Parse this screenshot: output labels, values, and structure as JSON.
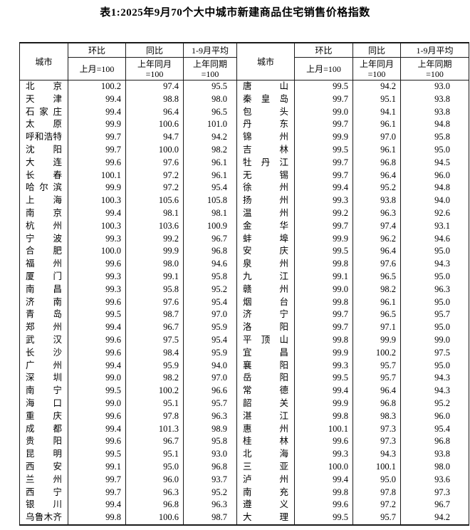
{
  "title": "表1:2025年9月70个大中城市新建商品住宅销售价格指数",
  "header": {
    "city_label": "城市",
    "columns": [
      {
        "top": "环比",
        "b1": "上月=100",
        "b2": ""
      },
      {
        "top": "同比",
        "b1": "上年同月",
        "b2": "=100"
      },
      {
        "top": "1-9月平均",
        "b1": "上年同期",
        "b2": "=100"
      }
    ]
  },
  "left_rows": [
    {
      "city": "北京",
      "mom": "100.2",
      "yoy": "97.4",
      "avg": "95.5"
    },
    {
      "city": "天津",
      "mom": "99.4",
      "yoy": "98.8",
      "avg": "98.0"
    },
    {
      "city": "石家庄",
      "mom": "99.4",
      "yoy": "96.4",
      "avg": "96.5"
    },
    {
      "city": "太原",
      "mom": "99.9",
      "yoy": "100.6",
      "avg": "101.0"
    },
    {
      "city": "呼和浩特",
      "mom": "99.7",
      "yoy": "94.7",
      "avg": "94.2"
    },
    {
      "city": "沈阳",
      "mom": "99.7",
      "yoy": "100.0",
      "avg": "98.2"
    },
    {
      "city": "大连",
      "mom": "99.6",
      "yoy": "97.6",
      "avg": "96.1"
    },
    {
      "city": "长春",
      "mom": "100.1",
      "yoy": "97.2",
      "avg": "96.1"
    },
    {
      "city": "哈尔滨",
      "mom": "99.9",
      "yoy": "97.2",
      "avg": "95.4"
    },
    {
      "city": "上海",
      "mom": "100.3",
      "yoy": "105.6",
      "avg": "105.8"
    },
    {
      "city": "南京",
      "mom": "99.4",
      "yoy": "98.1",
      "avg": "98.1"
    },
    {
      "city": "杭州",
      "mom": "100.3",
      "yoy": "103.6",
      "avg": "100.9"
    },
    {
      "city": "宁波",
      "mom": "99.3",
      "yoy": "99.2",
      "avg": "96.7"
    },
    {
      "city": "合肥",
      "mom": "100.0",
      "yoy": "99.9",
      "avg": "96.8"
    },
    {
      "city": "福州",
      "mom": "99.6",
      "yoy": "98.0",
      "avg": "94.6"
    },
    {
      "city": "厦门",
      "mom": "99.3",
      "yoy": "99.1",
      "avg": "95.8"
    },
    {
      "city": "南昌",
      "mom": "99.3",
      "yoy": "95.8",
      "avg": "95.2"
    },
    {
      "city": "济南",
      "mom": "99.6",
      "yoy": "97.6",
      "avg": "95.4"
    },
    {
      "city": "青岛",
      "mom": "99.5",
      "yoy": "98.7",
      "avg": "97.0"
    },
    {
      "city": "郑州",
      "mom": "99.4",
      "yoy": "96.7",
      "avg": "95.9"
    },
    {
      "city": "武汉",
      "mom": "99.6",
      "yoy": "97.5",
      "avg": "95.4"
    },
    {
      "city": "长沙",
      "mom": "99.6",
      "yoy": "98.4",
      "avg": "95.9"
    },
    {
      "city": "广州",
      "mom": "99.4",
      "yoy": "95.9",
      "avg": "94.0"
    },
    {
      "city": "深圳",
      "mom": "99.0",
      "yoy": "98.2",
      "avg": "97.0"
    },
    {
      "city": "南宁",
      "mom": "99.5",
      "yoy": "100.2",
      "avg": "96.6"
    },
    {
      "city": "海口",
      "mom": "99.0",
      "yoy": "95.1",
      "avg": "95.7"
    },
    {
      "city": "重庆",
      "mom": "99.6",
      "yoy": "97.8",
      "avg": "96.3"
    },
    {
      "city": "成都",
      "mom": "99.4",
      "yoy": "101.3",
      "avg": "98.9"
    },
    {
      "city": "贵阳",
      "mom": "99.6",
      "yoy": "96.7",
      "avg": "95.8"
    },
    {
      "city": "昆明",
      "mom": "99.5",
      "yoy": "95.1",
      "avg": "93.0"
    },
    {
      "city": "西安",
      "mom": "99.1",
      "yoy": "95.0",
      "avg": "96.8"
    },
    {
      "city": "兰州",
      "mom": "99.7",
      "yoy": "96.0",
      "avg": "93.7"
    },
    {
      "city": "西宁",
      "mom": "99.7",
      "yoy": "96.3",
      "avg": "95.2"
    },
    {
      "city": "银川",
      "mom": "99.4",
      "yoy": "96.8",
      "avg": "96.3"
    },
    {
      "city": "乌鲁木齐",
      "mom": "99.8",
      "yoy": "100.6",
      "avg": "98.7"
    }
  ],
  "right_rows": [
    {
      "city": "唐山",
      "mom": "99.5",
      "yoy": "94.2",
      "avg": "93.0"
    },
    {
      "city": "秦皇岛",
      "mom": "99.7",
      "yoy": "95.1",
      "avg": "93.8"
    },
    {
      "city": "包头",
      "mom": "99.0",
      "yoy": "94.1",
      "avg": "93.8"
    },
    {
      "city": "丹东",
      "mom": "99.7",
      "yoy": "96.1",
      "avg": "94.8"
    },
    {
      "city": "锦州",
      "mom": "99.9",
      "yoy": "97.0",
      "avg": "95.8"
    },
    {
      "city": "吉林",
      "mom": "99.5",
      "yoy": "96.1",
      "avg": "95.0"
    },
    {
      "city": "牡丹江",
      "mom": "99.7",
      "yoy": "96.8",
      "avg": "94.5"
    },
    {
      "city": "无锡",
      "mom": "99.7",
      "yoy": "96.4",
      "avg": "96.0"
    },
    {
      "city": "徐州",
      "mom": "99.4",
      "yoy": "95.2",
      "avg": "94.8"
    },
    {
      "city": "扬州",
      "mom": "99.3",
      "yoy": "93.8",
      "avg": "94.0"
    },
    {
      "city": "温州",
      "mom": "99.2",
      "yoy": "96.3",
      "avg": "92.6"
    },
    {
      "city": "金华",
      "mom": "99.7",
      "yoy": "97.4",
      "avg": "93.1"
    },
    {
      "city": "蚌埠",
      "mom": "99.9",
      "yoy": "96.2",
      "avg": "94.6"
    },
    {
      "city": "安庆",
      "mom": "99.5",
      "yoy": "96.4",
      "avg": "95.0"
    },
    {
      "city": "泉州",
      "mom": "99.8",
      "yoy": "97.6",
      "avg": "94.3"
    },
    {
      "city": "九江",
      "mom": "99.1",
      "yoy": "96.5",
      "avg": "95.0"
    },
    {
      "city": "赣州",
      "mom": "99.0",
      "yoy": "98.2",
      "avg": "96.3"
    },
    {
      "city": "烟台",
      "mom": "99.8",
      "yoy": "96.1",
      "avg": "95.0"
    },
    {
      "city": "济宁",
      "mom": "99.7",
      "yoy": "96.5",
      "avg": "95.7"
    },
    {
      "city": "洛阳",
      "mom": "99.7",
      "yoy": "97.1",
      "avg": "95.0"
    },
    {
      "city": "平顶山",
      "mom": "99.8",
      "yoy": "99.9",
      "avg": "99.0"
    },
    {
      "city": "宜昌",
      "mom": "99.9",
      "yoy": "100.2",
      "avg": "97.5"
    },
    {
      "city": "襄阳",
      "mom": "99.3",
      "yoy": "95.7",
      "avg": "95.0"
    },
    {
      "city": "岳阳",
      "mom": "99.5",
      "yoy": "95.7",
      "avg": "94.3"
    },
    {
      "city": "常德",
      "mom": "99.4",
      "yoy": "96.4",
      "avg": "94.3"
    },
    {
      "city": "韶关",
      "mom": "99.9",
      "yoy": "96.8",
      "avg": "95.2"
    },
    {
      "city": "湛江",
      "mom": "99.8",
      "yoy": "98.3",
      "avg": "96.0"
    },
    {
      "city": "惠州",
      "mom": "100.1",
      "yoy": "97.3",
      "avg": "95.4"
    },
    {
      "city": "桂林",
      "mom": "99.6",
      "yoy": "97.3",
      "avg": "96.8"
    },
    {
      "city": "北海",
      "mom": "99.3",
      "yoy": "94.3",
      "avg": "93.8"
    },
    {
      "city": "三亚",
      "mom": "100.0",
      "yoy": "100.1",
      "avg": "98.0"
    },
    {
      "city": "泸州",
      "mom": "99.4",
      "yoy": "95.0",
      "avg": "93.6"
    },
    {
      "city": "南充",
      "mom": "99.8",
      "yoy": "97.8",
      "avg": "97.3"
    },
    {
      "city": "遵义",
      "mom": "99.6",
      "yoy": "97.2",
      "avg": "96.7"
    },
    {
      "city": "大理",
      "mom": "99.5",
      "yoy": "95.7",
      "avg": "94.2"
    }
  ]
}
